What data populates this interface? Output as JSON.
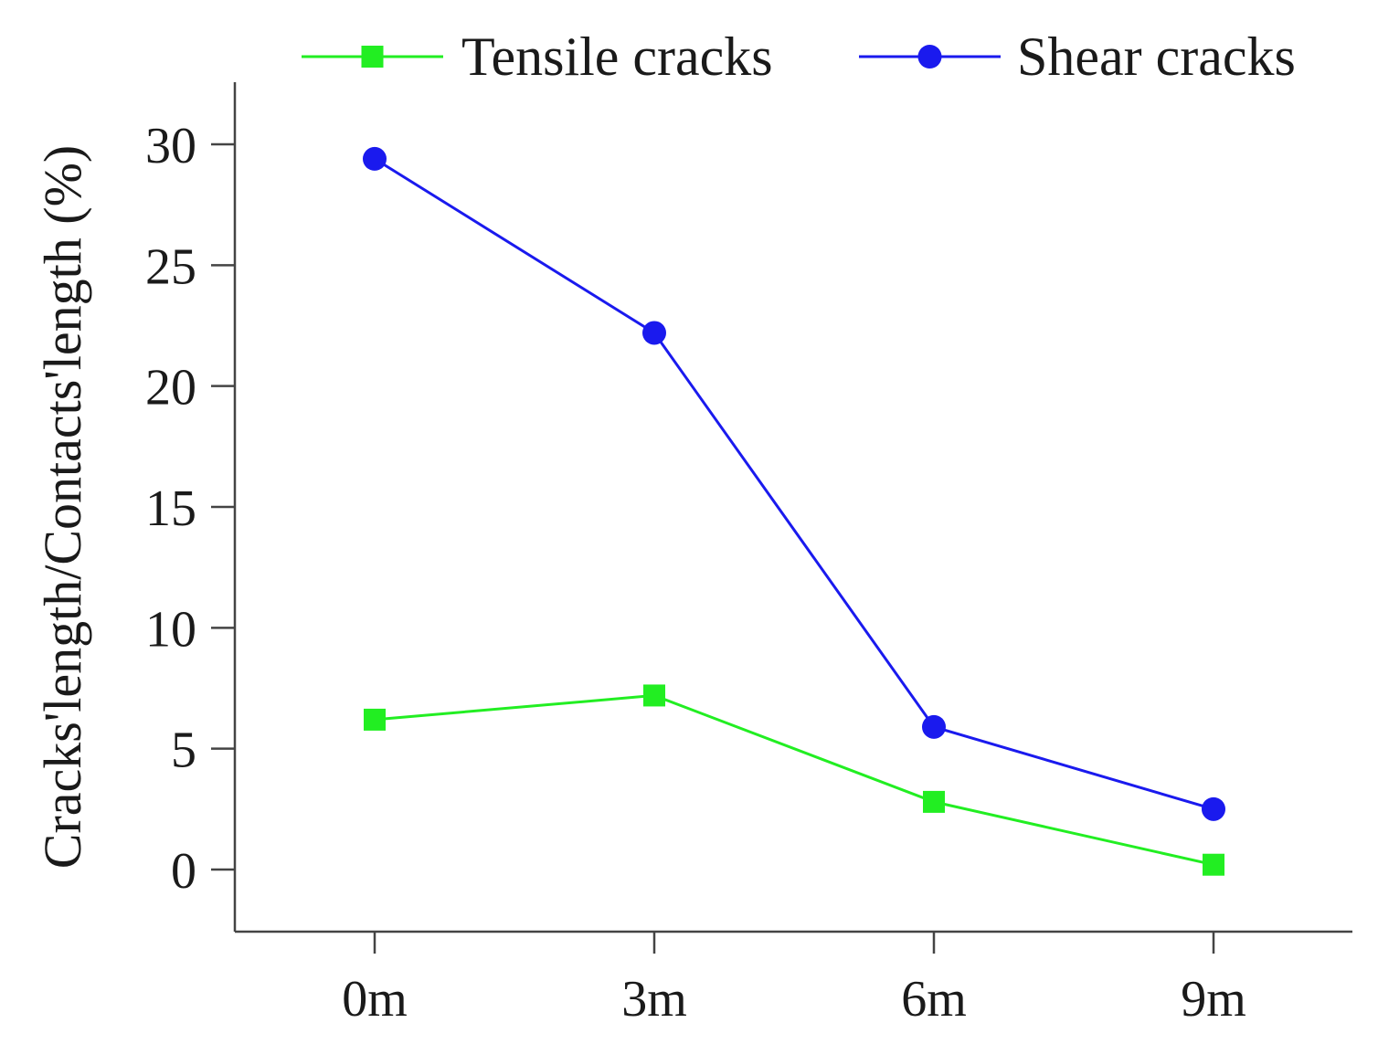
{
  "chart_data": {
    "type": "line",
    "categories": [
      "0m",
      "3m",
      "6m",
      "9m"
    ],
    "series": [
      {
        "name": "Tensile cracks",
        "color": "#22ee22",
        "marker": "square",
        "values": [
          6.2,
          7.2,
          2.8,
          0.2
        ]
      },
      {
        "name": "Shear cracks",
        "color": "#1a1aee",
        "marker": "circle",
        "values": [
          29.4,
          22.2,
          5.9,
          2.5
        ]
      }
    ],
    "title": "",
    "xlabel": "",
    "ylabel": "Cracks'length/Contacts'length (%)",
    "ylim": [
      -2.5,
      32.5
    ],
    "yticks": [
      0,
      5,
      10,
      15,
      20,
      25,
      30
    ],
    "grid": false,
    "legend_position": "top"
  }
}
